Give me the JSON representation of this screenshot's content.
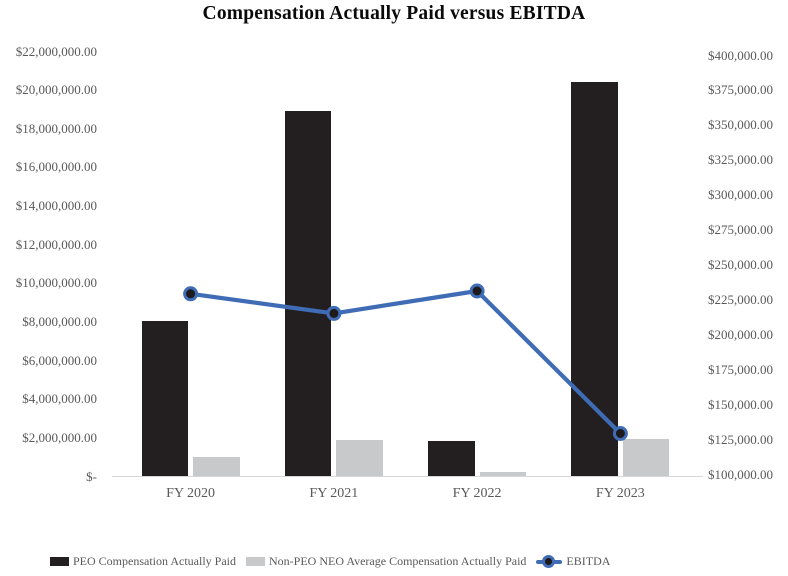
{
  "title": "Compensation Actually Paid versus EBITDA",
  "chart_data": {
    "type": "combo",
    "title": "Compensation Actually Paid versus EBITDA",
    "categories": [
      "FY 2020",
      "FY 2021",
      "FY 2022",
      "FY 2023"
    ],
    "series": [
      {
        "name": "PEO Compensation Actually Paid",
        "type": "bar",
        "axis": "left",
        "color": "#231f20",
        "values": [
          8000000,
          18900000,
          1800000,
          20400000
        ]
      },
      {
        "name": "Non-PEO NEO Average Compensation Actually Paid",
        "type": "bar",
        "axis": "left",
        "color": "#c8c9cb",
        "values": [
          1000000,
          1850000,
          200000,
          1900000
        ]
      },
      {
        "name": "EBITDA",
        "type": "line",
        "axis": "right",
        "color": "#3f6cb5",
        "marker_color": "#1e1a1b",
        "values": [
          229000,
          215000,
          231000,
          129000
        ]
      }
    ],
    "left_axis": {
      "min": 0,
      "max": 22000000,
      "step": 2000000,
      "tick_labels": [
        "$22,000,000.00",
        "$20,000,000.00",
        "$18,000,000.00",
        "$16,000,000.00",
        "$14,000,000.00",
        "$12,000,000.00",
        "$10,000,000.00",
        "$8,000,000.00",
        "$6,000,000.00",
        "$4,000,000.00",
        "$2,000,000.00",
        "$-"
      ]
    },
    "right_axis": {
      "min": 100000,
      "max": 400000,
      "step": 25000,
      "tick_labels": [
        "$400,000.00",
        "$375,000.00",
        "$350,000.00",
        "$325,000.00",
        "$300,000.00",
        "$275,000.00",
        "$250,000.00",
        "$225,000.00",
        "$200,000.00",
        "$175,000.00",
        "$150,000.00",
        "$125,000.00",
        "$100,000.00"
      ]
    },
    "legend_position": "bottom",
    "gridlines": false
  },
  "colors": {
    "background": "#ffffff",
    "axis_text": "#595959",
    "axis_line": "#d7d7d7",
    "title_text": "#0a0a0a"
  }
}
